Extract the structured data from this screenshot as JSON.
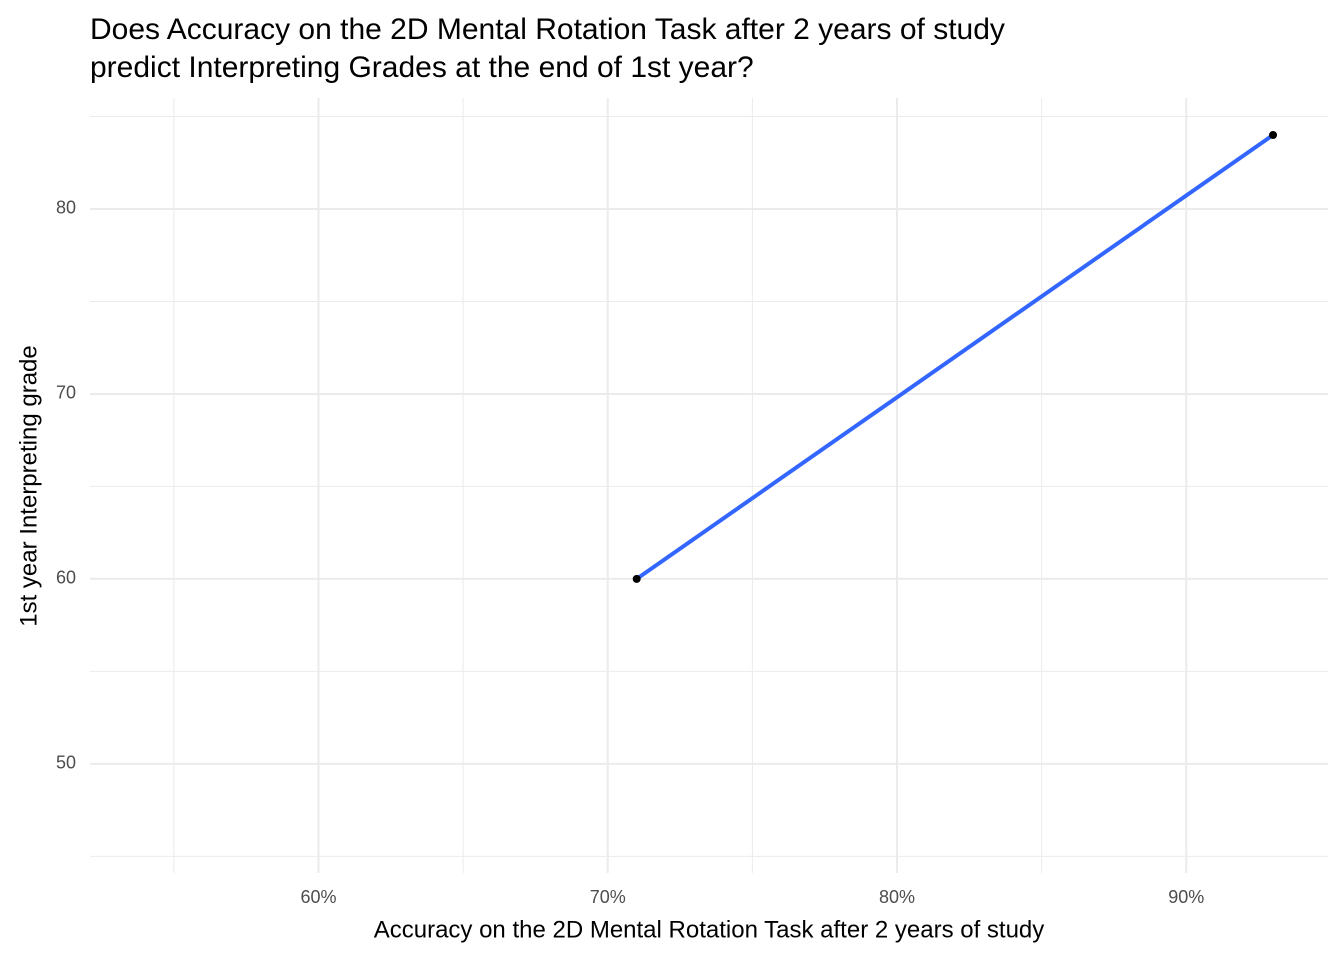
{
  "chart_data": {
    "type": "scatter",
    "title": [
      "Does Accuracy on the 2D Mental Rotation Task after 2 years of study",
      "predict Interpreting Grades at the end of 1st year?"
    ],
    "x_label": "Accuracy on the 2D Mental Rotation Task after 2 years of study",
    "y_label": "1st year Interpreting grade",
    "series": [
      {
        "x": [
          71,
          93
        ],
        "values": [
          60,
          84
        ],
        "color": "#000000",
        "line_color": "#3366ff"
      }
    ],
    "xlim": [
      52.1,
      94.9
    ],
    "ylim": [
      44.1,
      86
    ],
    "xticks": [
      {
        "value": 60,
        "label": "60%"
      },
      {
        "value": 70,
        "label": "70%"
      },
      {
        "value": 80,
        "label": "80%"
      },
      {
        "value": 90,
        "label": "90%"
      }
    ],
    "yticks": [
      50,
      60,
      70,
      80
    ],
    "x_minor_grid": [
      55,
      65,
      75,
      85
    ],
    "y_minor_grid": [
      45,
      55,
      65,
      75,
      85
    ],
    "grid": true
  }
}
